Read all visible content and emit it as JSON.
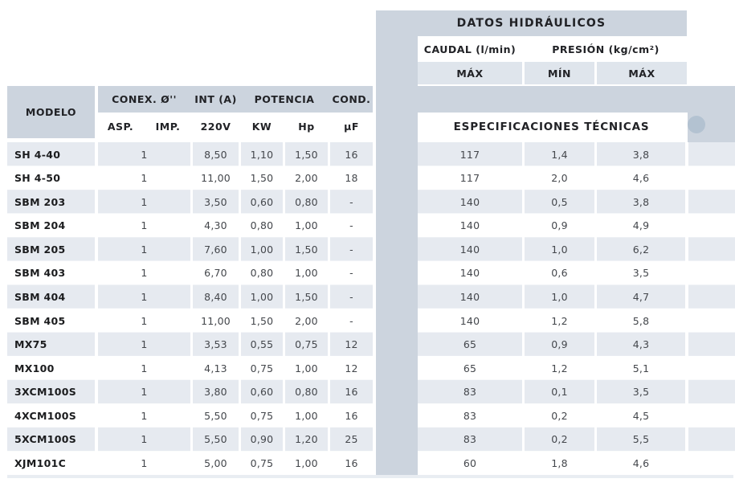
{
  "table": {
    "left": {
      "modelo_label": "MODELO",
      "group_headers": [
        "CONEX. Ø''",
        "INT (A)",
        "POTENCIA",
        "COND."
      ],
      "sub_headers": [
        "ASP.",
        "IMP.",
        "220V",
        "KW",
        "Hp",
        "µF"
      ]
    },
    "right": {
      "title": "DATOS HIDRÁULICOS",
      "group_headers": [
        "CAUDAL (l/min)",
        "PRESIÓN (kg/cm²)"
      ],
      "sub_headers": [
        "MÁX",
        "MÍN",
        "MÁX"
      ],
      "banner": "ESPECIFICACIONES TÉCNICAS"
    },
    "rows": [
      {
        "modelo": "SH 4-40",
        "conex": "1",
        "v220": "8,50",
        "kw": "1,10",
        "hp": "1,50",
        "uf": "16",
        "caudal_max": "117",
        "presion_min": "1,4",
        "presion_max": "3,8"
      },
      {
        "modelo": "SH 4-50",
        "conex": "1",
        "v220": "11,00",
        "kw": "1,50",
        "hp": "2,00",
        "uf": "18",
        "caudal_max": "117",
        "presion_min": "2,0",
        "presion_max": "4,6"
      },
      {
        "modelo": "SBM 203",
        "conex": "1",
        "v220": "3,50",
        "kw": "0,60",
        "hp": "0,80",
        "uf": "-",
        "caudal_max": "140",
        "presion_min": "0,5",
        "presion_max": "3,8"
      },
      {
        "modelo": "SBM 204",
        "conex": "1",
        "v220": "4,30",
        "kw": "0,80",
        "hp": "1,00",
        "uf": "-",
        "caudal_max": "140",
        "presion_min": "0,9",
        "presion_max": "4,9"
      },
      {
        "modelo": "SBM 205",
        "conex": "1",
        "v220": "7,60",
        "kw": "1,00",
        "hp": "1,50",
        "uf": "-",
        "caudal_max": "140",
        "presion_min": "1,0",
        "presion_max": "6,2"
      },
      {
        "modelo": "SBM 403",
        "conex": "1",
        "v220": "6,70",
        "kw": "0,80",
        "hp": "1,00",
        "uf": "-",
        "caudal_max": "140",
        "presion_min": "0,6",
        "presion_max": "3,5"
      },
      {
        "modelo": "SBM 404",
        "conex": "1",
        "v220": "8,40",
        "kw": "1,00",
        "hp": "1,50",
        "uf": "-",
        "caudal_max": "140",
        "presion_min": "1,0",
        "presion_max": "4,7"
      },
      {
        "modelo": "SBM 405",
        "conex": "1",
        "v220": "11,00",
        "kw": "1,50",
        "hp": "2,00",
        "uf": "-",
        "caudal_max": "140",
        "presion_min": "1,2",
        "presion_max": "5,8"
      },
      {
        "modelo": "MX75",
        "conex": "1",
        "v220": "3,53",
        "kw": "0,55",
        "hp": "0,75",
        "uf": "12",
        "caudal_max": "65",
        "presion_min": "0,9",
        "presion_max": "4,3"
      },
      {
        "modelo": "MX100",
        "conex": "1",
        "v220": "4,13",
        "kw": "0,75",
        "hp": "1,00",
        "uf": "12",
        "caudal_max": "65",
        "presion_min": "1,2",
        "presion_max": "5,1"
      },
      {
        "modelo": "3XCM100S",
        "conex": "1",
        "v220": "3,80",
        "kw": "0,60",
        "hp": "0,80",
        "uf": "16",
        "caudal_max": "83",
        "presion_min": "0,1",
        "presion_max": "3,5"
      },
      {
        "modelo": "4XCM100S",
        "conex": "1",
        "v220": "5,50",
        "kw": "0,75",
        "hp": "1,00",
        "uf": "16",
        "caudal_max": "83",
        "presion_min": "0,2",
        "presion_max": "4,5"
      },
      {
        "modelo": "5XCM100S",
        "conex": "1",
        "v220": "5,50",
        "kw": "0,90",
        "hp": "1,20",
        "uf": "25",
        "caudal_max": "83",
        "presion_min": "0,2",
        "presion_max": "5,5"
      },
      {
        "modelo": "XJM101C",
        "conex": "1",
        "v220": "5,00",
        "kw": "0,75",
        "hp": "1,00",
        "uf": "16",
        "caudal_max": "60",
        "presion_min": "1,8",
        "presion_max": "4,6"
      }
    ]
  },
  "colors": {
    "header_dark": "#ccd4de",
    "subheader": "#dfe5ec",
    "row_light": "#e6eaf0",
    "circle": "#b3c2d1"
  }
}
